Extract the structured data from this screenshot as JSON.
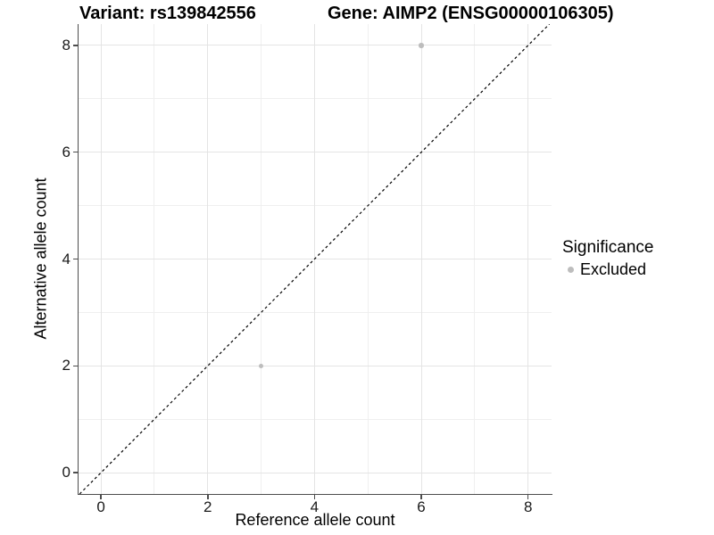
{
  "title": {
    "left": "Variant: rs139842556",
    "right": "Gene: AIMP2 (ENSG00000106305)"
  },
  "chart_data": {
    "type": "scatter",
    "title": "Variant: rs139842556   Gene: AIMP2 (ENSG00000106305)",
    "xlabel": "Reference allele count",
    "ylabel": "Alternative allele count",
    "xlim": [
      -0.42,
      8.44
    ],
    "ylim": [
      -0.4,
      8.4
    ],
    "x_ticks": [
      0,
      2,
      4,
      6,
      8
    ],
    "y_ticks": [
      0,
      2,
      4,
      6,
      8
    ],
    "x_minor_ticks": [
      1,
      3,
      5,
      7
    ],
    "y_minor_ticks": [
      1,
      3,
      5,
      7
    ],
    "grid": true,
    "reference_line": {
      "type": "identity y=x",
      "style": "dashed",
      "color": "#000000"
    },
    "series": [
      {
        "name": "Excluded",
        "color": "#bdbdbd",
        "marker": "circle",
        "points": [
          {
            "x": 3,
            "y": 2
          },
          {
            "x": 6,
            "y": 8
          }
        ]
      }
    ],
    "legend": {
      "title": "Significance",
      "position": "right",
      "entries": [
        {
          "label": "Excluded",
          "color": "#bdbdbd"
        }
      ]
    }
  },
  "colors": {
    "background": "#ffffff",
    "grid_major": "#e4e4e4",
    "grid_minor": "#efefef",
    "axis_line": "#4d4d4d",
    "tick_text": "#1a1a1a",
    "point_gray": "#bdbdbd",
    "reference_line": "#000000"
  }
}
